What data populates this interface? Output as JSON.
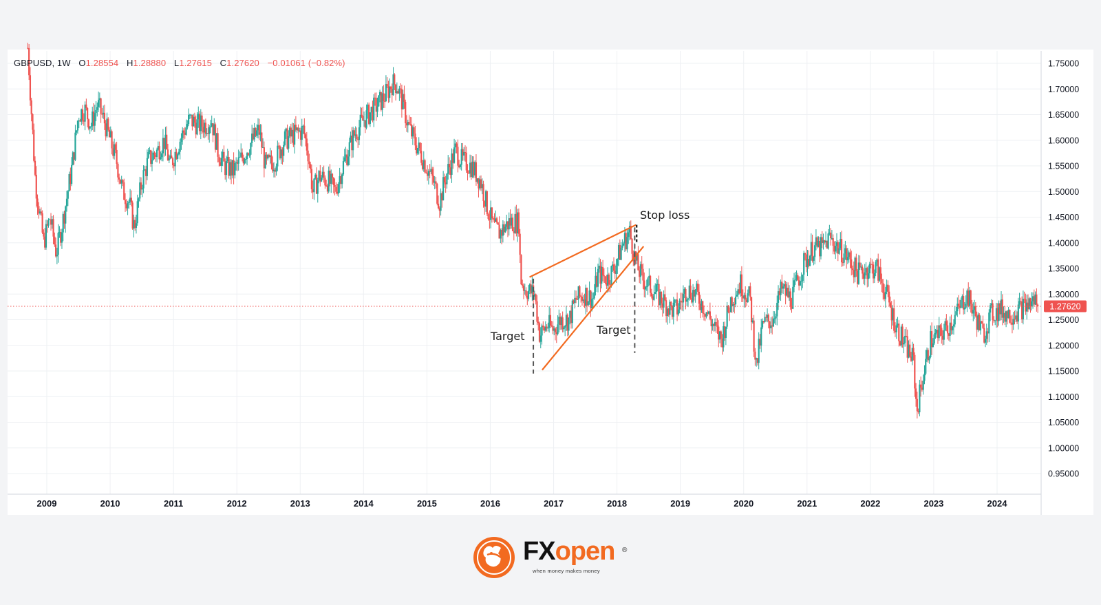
{
  "legend": {
    "symbol": "GBPUSD, 1W",
    "open_label": "O",
    "open": "1.28554",
    "high_label": "H",
    "high": "1.28880",
    "low_label": "L",
    "low": "1.27615",
    "close_label": "C",
    "close": "1.27620",
    "change": "−0.01061 (−0.82%)"
  },
  "price_tag": "1.27620",
  "annotations": {
    "stop_loss": "Stop loss",
    "target_left": "Target",
    "target_right": "Target"
  },
  "brand": {
    "name_part1": "FX",
    "name_part2": "open",
    "registered": "®",
    "tagline": "when money makes money"
  },
  "colors": {
    "up": "#26a69a",
    "down": "#ef5350",
    "pattern_lines": "#f26a20",
    "price_line": "#ef5350"
  },
  "chart_data": {
    "type": "candlestick",
    "instrument": "GBPUSD",
    "timeframe": "1W",
    "ylim": [
      0.93,
      1.77
    ],
    "y_ticks": [
      "0.95000",
      "1.00000",
      "1.05000",
      "1.10000",
      "1.15000",
      "1.20000",
      "1.25000",
      "1.30000",
      "1.35000",
      "1.40000",
      "1.45000",
      "1.50000",
      "1.55000",
      "1.60000",
      "1.65000",
      "1.70000",
      "1.75000"
    ],
    "x_ticks": [
      "2009",
      "2010",
      "2011",
      "2012",
      "2013",
      "2014",
      "2015",
      "2016",
      "2017",
      "2018",
      "2019",
      "2020",
      "2021",
      "2022",
      "2023",
      "2024"
    ],
    "xlim": [
      2008.4,
      2024.9
    ],
    "current_price": 1.2762,
    "grid": true,
    "price_path": [
      [
        2008.7,
        1.78
      ],
      [
        2008.82,
        1.52
      ],
      [
        2008.95,
        1.4
      ],
      [
        2009.05,
        1.45
      ],
      [
        2009.15,
        1.38
      ],
      [
        2009.25,
        1.44
      ],
      [
        2009.4,
        1.55
      ],
      [
        2009.5,
        1.65
      ],
      [
        2009.6,
        1.66
      ],
      [
        2009.7,
        1.63
      ],
      [
        2009.8,
        1.67
      ],
      [
        2009.9,
        1.64
      ],
      [
        2010.0,
        1.6
      ],
      [
        2010.1,
        1.56
      ],
      [
        2010.2,
        1.5
      ],
      [
        2010.3,
        1.48
      ],
      [
        2010.38,
        1.43
      ],
      [
        2010.5,
        1.52
      ],
      [
        2010.6,
        1.56
      ],
      [
        2010.75,
        1.58
      ],
      [
        2010.85,
        1.6
      ],
      [
        2010.95,
        1.55
      ],
      [
        2011.1,
        1.6
      ],
      [
        2011.25,
        1.64
      ],
      [
        2011.4,
        1.63
      ],
      [
        2011.5,
        1.63
      ],
      [
        2011.6,
        1.64
      ],
      [
        2011.7,
        1.58
      ],
      [
        2011.8,
        1.55
      ],
      [
        2011.95,
        1.54
      ],
      [
        2012.1,
        1.57
      ],
      [
        2012.25,
        1.6
      ],
      [
        2012.35,
        1.62
      ],
      [
        2012.45,
        1.55
      ],
      [
        2012.6,
        1.56
      ],
      [
        2012.75,
        1.6
      ],
      [
        2012.9,
        1.61
      ],
      [
        2013.05,
        1.62
      ],
      [
        2013.12,
        1.58
      ],
      [
        2013.2,
        1.5
      ],
      [
        2013.3,
        1.53
      ],
      [
        2013.45,
        1.52
      ],
      [
        2013.55,
        1.5
      ],
      [
        2013.7,
        1.56
      ],
      [
        2013.85,
        1.61
      ],
      [
        2014.0,
        1.64
      ],
      [
        2014.15,
        1.66
      ],
      [
        2014.3,
        1.68
      ],
      [
        2014.45,
        1.71
      ],
      [
        2014.52,
        1.71
      ],
      [
        2014.6,
        1.68
      ],
      [
        2014.7,
        1.63
      ],
      [
        2014.8,
        1.6
      ],
      [
        2014.95,
        1.56
      ],
      [
        2015.1,
        1.52
      ],
      [
        2015.2,
        1.48
      ],
      [
        2015.3,
        1.53
      ],
      [
        2015.45,
        1.58
      ],
      [
        2015.55,
        1.56
      ],
      [
        2015.7,
        1.55
      ],
      [
        2015.85,
        1.52
      ],
      [
        2015.95,
        1.47
      ],
      [
        2016.05,
        1.43
      ],
      [
        2016.15,
        1.42
      ],
      [
        2016.3,
        1.44
      ],
      [
        2016.45,
        1.44
      ],
      [
        2016.48,
        1.33
      ],
      [
        2016.55,
        1.31
      ],
      [
        2016.7,
        1.3
      ],
      [
        2016.78,
        1.22
      ],
      [
        2016.9,
        1.24
      ],
      [
        2017.0,
        1.23
      ],
      [
        2017.1,
        1.25
      ],
      [
        2017.25,
        1.25
      ],
      [
        2017.35,
        1.29
      ],
      [
        2017.5,
        1.3
      ],
      [
        2017.62,
        1.29
      ],
      [
        2017.7,
        1.34
      ],
      [
        2017.85,
        1.33
      ],
      [
        2017.95,
        1.35
      ],
      [
        2018.1,
        1.4
      ],
      [
        2018.2,
        1.42
      ],
      [
        2018.3,
        1.36
      ],
      [
        2018.4,
        1.33
      ],
      [
        2018.55,
        1.31
      ],
      [
        2018.7,
        1.29
      ],
      [
        2018.85,
        1.27
      ],
      [
        2018.95,
        1.27
      ],
      [
        2019.1,
        1.31
      ],
      [
        2019.25,
        1.3
      ],
      [
        2019.4,
        1.27
      ],
      [
        2019.55,
        1.23
      ],
      [
        2019.65,
        1.21
      ],
      [
        2019.8,
        1.29
      ],
      [
        2019.95,
        1.32
      ],
      [
        2020.1,
        1.29
      ],
      [
        2020.2,
        1.16
      ],
      [
        2020.3,
        1.24
      ],
      [
        2020.45,
        1.25
      ],
      [
        2020.6,
        1.31
      ],
      [
        2020.75,
        1.29
      ],
      [
        2020.95,
        1.36
      ],
      [
        2021.1,
        1.39
      ],
      [
        2021.25,
        1.39
      ],
      [
        2021.35,
        1.41
      ],
      [
        2021.5,
        1.39
      ],
      [
        2021.65,
        1.37
      ],
      [
        2021.8,
        1.34
      ],
      [
        2021.95,
        1.35
      ],
      [
        2022.1,
        1.35
      ],
      [
        2022.25,
        1.3
      ],
      [
        2022.4,
        1.24
      ],
      [
        2022.55,
        1.2
      ],
      [
        2022.68,
        1.17
      ],
      [
        2022.73,
        1.07
      ],
      [
        2022.8,
        1.12
      ],
      [
        2022.95,
        1.21
      ],
      [
        2023.1,
        1.22
      ],
      [
        2023.25,
        1.24
      ],
      [
        2023.4,
        1.27
      ],
      [
        2023.52,
        1.3
      ],
      [
        2023.65,
        1.26
      ],
      [
        2023.78,
        1.22
      ],
      [
        2023.9,
        1.26
      ],
      [
        2024.05,
        1.27
      ],
      [
        2024.2,
        1.26
      ],
      [
        2024.35,
        1.27
      ],
      [
        2024.5,
        1.28
      ],
      [
        2024.6,
        1.29
      ],
      [
        2024.65,
        1.2762
      ]
    ],
    "drawings": {
      "upper_trendline": [
        [
          2016.62,
          1.333
        ],
        [
          2018.3,
          1.435
        ]
      ],
      "lower_trendline": [
        [
          2016.82,
          1.152
        ],
        [
          2018.42,
          1.393
        ]
      ],
      "left_target_line": [
        [
          2016.68,
          1.33
        ],
        [
          2016.68,
          1.145
        ]
      ],
      "right_target_line": [
        [
          2018.28,
          1.43
        ],
        [
          2018.28,
          1.185
        ]
      ],
      "stop_loss_marker": [
        [
          2018.31,
          1.435
        ],
        [
          2018.31,
          1.4
        ]
      ]
    }
  }
}
